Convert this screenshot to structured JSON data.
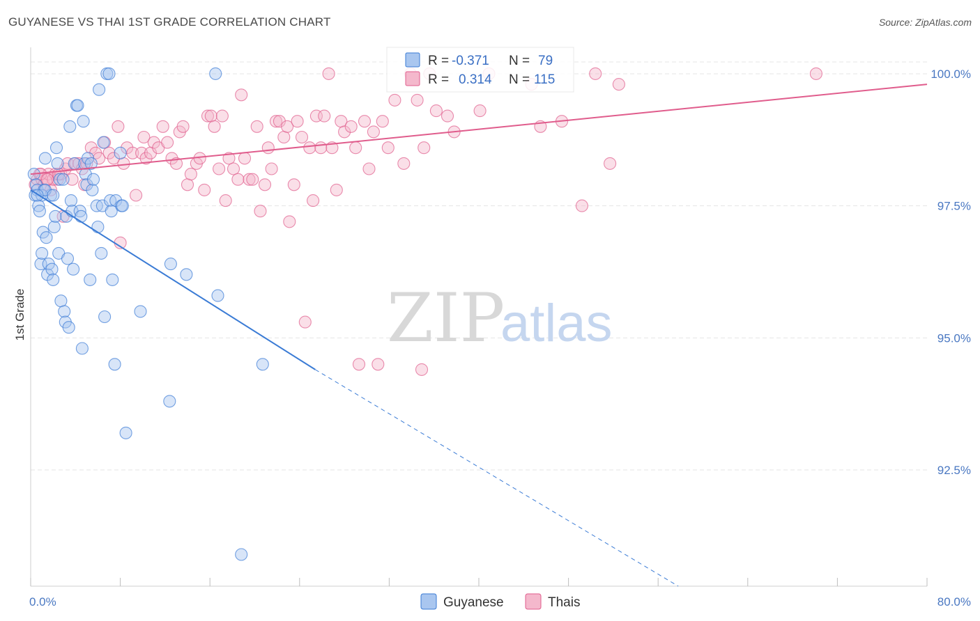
{
  "title": "GUYANESE VS THAI 1ST GRADE CORRELATION CHART",
  "source": "Source: ZipAtlas.com",
  "watermark": {
    "zip": "ZIP",
    "atlas": "atlas"
  },
  "colors": {
    "guyanese": "#3a7bd5",
    "guyanese_fill": "#a9c6ef",
    "thai": "#e05c8c",
    "thai_fill": "#f4b8cc",
    "tick_label": "#4a78c2",
    "grid": "#e4e4e4"
  },
  "legend": {
    "rows": [
      {
        "r_label": "R =",
        "r_value": "-0.371",
        "n_label": "N =",
        "n_value": "79"
      },
      {
        "r_label": "R =",
        "r_value": "0.314",
        "n_label": "N =",
        "n_value": "115"
      }
    ]
  },
  "chart_data": {
    "type": "scatter",
    "xlabel": "",
    "ylabel": "1st Grade",
    "xlim": [
      0,
      80
    ],
    "ylim": [
      90.3,
      100.5
    ],
    "x_tick_labels": [
      "0.0%",
      "80.0%"
    ],
    "y_ticks": [
      92.5,
      95.0,
      97.5,
      100.0
    ],
    "y_tick_labels": [
      "92.5%",
      "95.0%",
      "97.5%",
      "100.0%"
    ],
    "grid": true,
    "legend_position": "top-center",
    "series": [
      {
        "name": "Guyanese",
        "r": -0.371,
        "n": 79,
        "trend": {
          "x0": 0,
          "y0": 97.8,
          "x1": 25.4,
          "y1": 94.4,
          "dash_to_x": 57.8,
          "dash_to_y": 90.3
        },
        "points": [
          [
            0.3,
            98.1
          ],
          [
            0.4,
            97.7
          ],
          [
            0.5,
            97.9
          ],
          [
            0.6,
            97.8
          ],
          [
            0.7,
            97.5
          ],
          [
            0.8,
            97.4
          ],
          [
            0.9,
            96.4
          ],
          [
            1.0,
            96.6
          ],
          [
            1.1,
            97.0
          ],
          [
            1.2,
            97.8
          ],
          [
            1.3,
            98.4
          ],
          [
            1.4,
            96.9
          ],
          [
            1.5,
            96.2
          ],
          [
            1.6,
            96.4
          ],
          [
            1.8,
            97.7
          ],
          [
            1.9,
            96.3
          ],
          [
            2.0,
            96.1
          ],
          [
            2.1,
            97.1
          ],
          [
            2.2,
            97.3
          ],
          [
            2.3,
            98.6
          ],
          [
            2.4,
            98.3
          ],
          [
            2.5,
            96.6
          ],
          [
            2.6,
            98.0
          ],
          [
            2.7,
            95.7
          ],
          [
            2.9,
            98.0
          ],
          [
            3.0,
            95.5
          ],
          [
            3.1,
            95.3
          ],
          [
            3.2,
            97.3
          ],
          [
            3.3,
            96.5
          ],
          [
            3.4,
            95.2
          ],
          [
            3.5,
            99.0
          ],
          [
            3.6,
            97.6
          ],
          [
            3.7,
            97.4
          ],
          [
            3.8,
            96.3
          ],
          [
            3.9,
            98.3
          ],
          [
            4.1,
            99.4
          ],
          [
            4.2,
            99.4
          ],
          [
            4.4,
            97.4
          ],
          [
            4.5,
            97.3
          ],
          [
            4.6,
            94.8
          ],
          [
            4.7,
            99.1
          ],
          [
            4.8,
            98.3
          ],
          [
            4.9,
            98.1
          ],
          [
            5.0,
            97.9
          ],
          [
            5.1,
            98.4
          ],
          [
            5.3,
            96.1
          ],
          [
            5.4,
            98.3
          ],
          [
            5.5,
            97.8
          ],
          [
            5.6,
            98.0
          ],
          [
            5.9,
            97.5
          ],
          [
            6.0,
            97.1
          ],
          [
            6.1,
            99.7
          ],
          [
            6.3,
            96.6
          ],
          [
            6.4,
            97.5
          ],
          [
            6.5,
            98.7
          ],
          [
            6.6,
            95.4
          ],
          [
            6.8,
            100.0
          ],
          [
            7.0,
            100.0
          ],
          [
            7.1,
            97.6
          ],
          [
            7.2,
            97.4
          ],
          [
            7.3,
            96.1
          ],
          [
            7.5,
            94.5
          ],
          [
            7.6,
            97.6
          ],
          [
            8.0,
            98.5
          ],
          [
            8.1,
            97.5
          ],
          [
            8.2,
            97.5
          ],
          [
            8.5,
            93.2
          ],
          [
            9.8,
            95.5
          ],
          [
            12.4,
            93.8
          ],
          [
            12.5,
            96.4
          ],
          [
            13.9,
            96.2
          ],
          [
            16.5,
            100.0
          ],
          [
            16.7,
            95.8
          ],
          [
            18.8,
            90.9
          ],
          [
            20.7,
            94.5
          ],
          [
            1.0,
            97.7
          ],
          [
            1.3,
            97.8
          ],
          [
            2.0,
            97.7
          ],
          [
            0.6,
            97.7
          ]
        ]
      },
      {
        "name": "Thais",
        "r": 0.314,
        "n": 115,
        "trend": {
          "x0": 0,
          "y0": 98.1,
          "x1": 80,
          "y1": 99.8
        },
        "points": [
          [
            0.4,
            97.9
          ],
          [
            0.6,
            98.0
          ],
          [
            0.8,
            98.1
          ],
          [
            1.0,
            98.0
          ],
          [
            1.2,
            97.9
          ],
          [
            1.4,
            98.0
          ],
          [
            1.6,
            98.1
          ],
          [
            1.8,
            97.8
          ],
          [
            2.0,
            98.0
          ],
          [
            2.2,
            98.1
          ],
          [
            2.4,
            98.0
          ],
          [
            2.7,
            98.1
          ],
          [
            2.9,
            97.3
          ],
          [
            3.1,
            98.2
          ],
          [
            3.3,
            98.3
          ],
          [
            3.7,
            98.0
          ],
          [
            4.0,
            98.3
          ],
          [
            4.3,
            98.3
          ],
          [
            4.6,
            98.2
          ],
          [
            4.8,
            97.9
          ],
          [
            5.0,
            98.3
          ],
          [
            5.4,
            98.6
          ],
          [
            5.8,
            98.5
          ],
          [
            6.1,
            98.4
          ],
          [
            6.6,
            98.7
          ],
          [
            7.0,
            98.5
          ],
          [
            7.4,
            98.4
          ],
          [
            7.8,
            99.0
          ],
          [
            8.0,
            96.8
          ],
          [
            8.3,
            98.3
          ],
          [
            8.6,
            98.6
          ],
          [
            9.1,
            98.5
          ],
          [
            9.4,
            97.7
          ],
          [
            9.9,
            98.5
          ],
          [
            10.1,
            98.8
          ],
          [
            10.3,
            98.4
          ],
          [
            10.7,
            98.5
          ],
          [
            11.0,
            98.7
          ],
          [
            11.4,
            98.6
          ],
          [
            11.8,
            99.0
          ],
          [
            12.2,
            98.7
          ],
          [
            12.6,
            98.4
          ],
          [
            13.0,
            98.3
          ],
          [
            13.3,
            98.9
          ],
          [
            13.6,
            99.0
          ],
          [
            14.0,
            97.9
          ],
          [
            14.3,
            98.1
          ],
          [
            14.8,
            98.3
          ],
          [
            15.1,
            98.4
          ],
          [
            15.5,
            97.8
          ],
          [
            15.8,
            99.2
          ],
          [
            16.1,
            99.2
          ],
          [
            16.4,
            99.0
          ],
          [
            16.8,
            98.2
          ],
          [
            17.1,
            99.2
          ],
          [
            17.4,
            97.6
          ],
          [
            17.7,
            98.4
          ],
          [
            18.1,
            98.2
          ],
          [
            18.5,
            98.0
          ],
          [
            18.8,
            99.6
          ],
          [
            19.1,
            98.4
          ],
          [
            19.5,
            98.0
          ],
          [
            19.8,
            98.0
          ],
          [
            20.2,
            99.0
          ],
          [
            20.5,
            97.4
          ],
          [
            20.9,
            97.9
          ],
          [
            21.2,
            98.6
          ],
          [
            21.5,
            98.2
          ],
          [
            21.9,
            99.1
          ],
          [
            22.2,
            99.1
          ],
          [
            22.6,
            98.8
          ],
          [
            22.9,
            99.0
          ],
          [
            23.1,
            97.2
          ],
          [
            23.5,
            97.9
          ],
          [
            23.8,
            99.1
          ],
          [
            24.2,
            98.8
          ],
          [
            24.5,
            95.3
          ],
          [
            24.9,
            98.6
          ],
          [
            25.2,
            97.6
          ],
          [
            25.5,
            99.2
          ],
          [
            25.9,
            98.6
          ],
          [
            26.2,
            99.2
          ],
          [
            26.6,
            100.0
          ],
          [
            26.9,
            98.6
          ],
          [
            27.3,
            97.8
          ],
          [
            27.7,
            99.1
          ],
          [
            28.0,
            98.9
          ],
          [
            28.6,
            99.0
          ],
          [
            29.0,
            98.6
          ],
          [
            29.3,
            94.5
          ],
          [
            29.8,
            99.1
          ],
          [
            30.2,
            98.2
          ],
          [
            30.6,
            98.9
          ],
          [
            31.0,
            94.5
          ],
          [
            31.4,
            99.1
          ],
          [
            31.9,
            98.6
          ],
          [
            32.5,
            99.5
          ],
          [
            33.3,
            98.3
          ],
          [
            33.9,
            100.0
          ],
          [
            34.5,
            99.5
          ],
          [
            34.9,
            94.4
          ],
          [
            35.1,
            98.6
          ],
          [
            35.6,
            100.0
          ],
          [
            36.2,
            99.3
          ],
          [
            37.2,
            99.2
          ],
          [
            37.8,
            98.9
          ],
          [
            40.1,
            99.3
          ],
          [
            40.9,
            100.0
          ],
          [
            44.7,
            99.8
          ],
          [
            45.5,
            99.0
          ],
          [
            47.4,
            99.1
          ],
          [
            49.2,
            97.5
          ],
          [
            50.4,
            100.0
          ],
          [
            51.7,
            98.3
          ],
          [
            52.5,
            99.8
          ],
          [
            70.1,
            100.0
          ],
          [
            0.9,
            98.1
          ],
          [
            1.5,
            98.0
          ],
          [
            2.5,
            98.1
          ]
        ]
      }
    ]
  }
}
